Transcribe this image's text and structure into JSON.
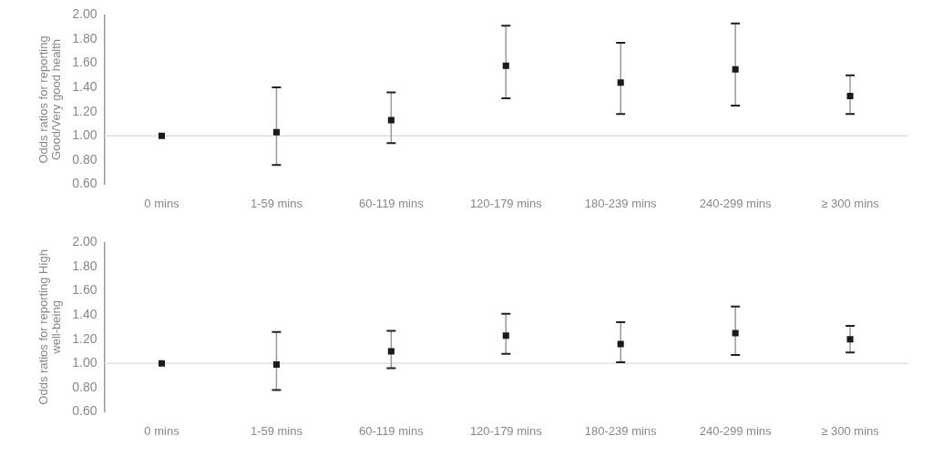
{
  "chart_data": [
    {
      "type": "scatter",
      "ylabel": "Odds ratios for reporting Good/Very good health",
      "categories": [
        "0 mins",
        "1-59 mins",
        "60-119 mins",
        "120-179 mins",
        "180-239 mins",
        "240-299 mins",
        "≥ 300 mins"
      ],
      "values": [
        1.0,
        1.03,
        1.13,
        1.58,
        1.44,
        1.55,
        1.33
      ],
      "errors": [
        null,
        [
          0.76,
          1.4
        ],
        [
          0.94,
          1.36
        ],
        [
          1.31,
          1.91
        ],
        [
          1.18,
          1.77
        ],
        [
          1.25,
          1.93
        ],
        [
          1.18,
          1.5
        ]
      ],
      "color": "#1a1a1a",
      "marker": "square",
      "ylim": [
        0.6,
        2.0
      ],
      "yticks": [
        {
          "value": 0.6,
          "label": "0.60"
        },
        {
          "value": 0.8,
          "label": "0.80"
        },
        {
          "value": 1.0,
          "label": "1.00"
        },
        {
          "value": 1.2,
          "label": "1.20"
        },
        {
          "value": 1.4,
          "label": "1.40"
        },
        {
          "value": 1.6,
          "label": "1.60"
        },
        {
          "value": 1.8,
          "label": "1.80"
        },
        {
          "value": 2.0,
          "label": "2.00"
        }
      ],
      "ref_lines": [
        {
          "axis": "y",
          "value": 1.0,
          "color": "#e0e0e0"
        }
      ],
      "grid": false,
      "legend": false
    },
    {
      "type": "scatter",
      "ylabel": "Odds ratios for reporting High well-being",
      "categories": [
        "0 mins",
        "1-59 mins",
        "60-119 mins",
        "120-179 mins",
        "180-239 mins",
        "240-299 mins",
        "≥ 300 mins"
      ],
      "values": [
        1.0,
        0.99,
        1.1,
        1.23,
        1.16,
        1.25,
        1.2
      ],
      "errors": [
        null,
        [
          0.78,
          1.26
        ],
        [
          0.96,
          1.27
        ],
        [
          1.08,
          1.41
        ],
        [
          1.01,
          1.34
        ],
        [
          1.07,
          1.47
        ],
        [
          1.09,
          1.31
        ]
      ],
      "color": "#1a1a1a",
      "marker": "square",
      "ylim": [
        0.6,
        2.0
      ],
      "yticks": [
        {
          "value": 0.6,
          "label": "0.60"
        },
        {
          "value": 0.8,
          "label": "0.80"
        },
        {
          "value": 1.0,
          "label": "1.00"
        },
        {
          "value": 1.2,
          "label": "1.20"
        },
        {
          "value": 1.4,
          "label": "1.40"
        },
        {
          "value": 1.6,
          "label": "1.60"
        },
        {
          "value": 1.8,
          "label": "1.80"
        },
        {
          "value": 2.0,
          "label": "2.00"
        }
      ],
      "ref_lines": [
        {
          "axis": "y",
          "value": 1.0,
          "color": "#e0e0e0"
        }
      ],
      "grid": false,
      "legend": false
    }
  ]
}
